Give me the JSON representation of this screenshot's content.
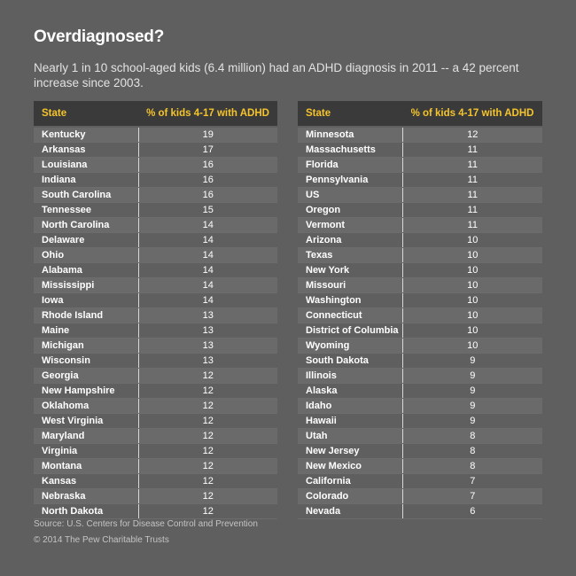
{
  "title": "Overdiagnosed?",
  "subtitle": "Nearly 1 in 10 school-aged kids (6.4 million) had an ADHD diagnosis in 2011 -- a 42 percent increase since 2003.",
  "colors": {
    "background": "#5f5f5f",
    "header_bg": "#3a3a3a",
    "header_text": "#f5c42c"
  },
  "chart_data": {
    "type": "table",
    "columns": [
      "State",
      "% of kids 4-17 with ADHD"
    ],
    "left_rows": [
      [
        "Kentucky",
        "19"
      ],
      [
        "Arkansas",
        "17"
      ],
      [
        "Louisiana",
        "16"
      ],
      [
        "Indiana",
        "16"
      ],
      [
        "South Carolina",
        "16"
      ],
      [
        "Tennessee",
        "15"
      ],
      [
        "North Carolina",
        "14"
      ],
      [
        "Delaware",
        "14"
      ],
      [
        "Ohio",
        "14"
      ],
      [
        "Alabama",
        "14"
      ],
      [
        "Mississippi",
        "14"
      ],
      [
        "Iowa",
        "14"
      ],
      [
        "Rhode Island",
        "13"
      ],
      [
        "Maine",
        "13"
      ],
      [
        "Michigan",
        "13"
      ],
      [
        "Wisconsin",
        "13"
      ],
      [
        "Georgia",
        "12"
      ],
      [
        "New Hampshire",
        "12"
      ],
      [
        "Oklahoma",
        "12"
      ],
      [
        "West Virginia",
        "12"
      ],
      [
        "Maryland",
        "12"
      ],
      [
        "Virginia",
        "12"
      ],
      [
        "Montana",
        "12"
      ],
      [
        "Kansas",
        "12"
      ],
      [
        "Nebraska",
        "12"
      ],
      [
        "North Dakota",
        "12"
      ]
    ],
    "right_rows": [
      [
        "Minnesota",
        "12"
      ],
      [
        "Massachusetts",
        "11"
      ],
      [
        "Florida",
        "11"
      ],
      [
        "Pennsylvania",
        "11"
      ],
      [
        "US",
        "11"
      ],
      [
        "Oregon",
        "11"
      ],
      [
        "Vermont",
        "11"
      ],
      [
        "Arizona",
        "10"
      ],
      [
        "Texas",
        "10"
      ],
      [
        "New York",
        "10"
      ],
      [
        "Missouri",
        "10"
      ],
      [
        "Washington",
        "10"
      ],
      [
        "Connecticut",
        "10"
      ],
      [
        "District of Columbia",
        "10"
      ],
      [
        "Wyoming",
        "10"
      ],
      [
        "South Dakota",
        "9"
      ],
      [
        "Illinois",
        "9"
      ],
      [
        "Alaska",
        "9"
      ],
      [
        "Idaho",
        "9"
      ],
      [
        "Hawaii",
        "9"
      ],
      [
        "Utah",
        "8"
      ],
      [
        "New Jersey",
        "8"
      ],
      [
        "New Mexico",
        "8"
      ],
      [
        "California",
        "7"
      ],
      [
        "Colorado",
        "7"
      ],
      [
        "Nevada",
        "6"
      ]
    ]
  },
  "footer": {
    "source": "Source: U.S. Centers for Disease Control and Prevention",
    "copyright": "© 2014 The Pew Charitable Trusts"
  }
}
